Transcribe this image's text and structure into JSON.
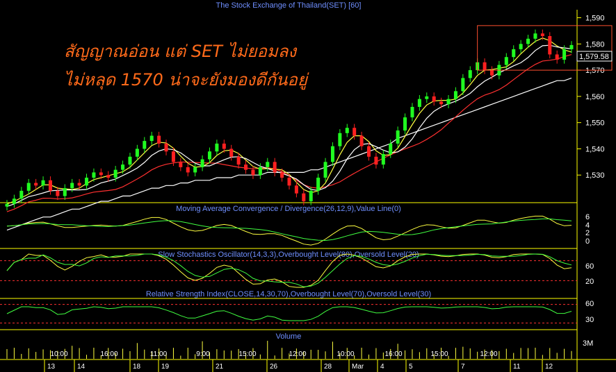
{
  "chart_title": "The Stock Exchange of Thailand(SET) [60]",
  "annotation": {
    "line1": "สัญญาณอ่อน แต่ SET ไม่ยอมลง",
    "line2": "ไม่หลุด 1570 น่าจะยังมองดีกันอยู่"
  },
  "last_price_label": "1,579.58",
  "panels": {
    "macd_title": "Moving Average Convergence / Divergence(26,12,9),Value Line(0)",
    "stoch_title": "Slow Stochastics Oscillator(14,3,3),Overbought Level(80),Oversold Level(20)",
    "rsi_title": "Relative Strength Index(CLOSE,14,30,70),Overbought Level(70),Oversold Level(30)",
    "volume_title": "Volume"
  },
  "price_axis": [
    "1,590",
    "1,580",
    "1,570",
    "1,560",
    "1,550",
    "1,540",
    "1,530"
  ],
  "macd_axis": [
    "6",
    "4",
    "2",
    "0"
  ],
  "stoch_axis": [
    "60",
    "20"
  ],
  "rsi_axis": [
    "60",
    "30"
  ],
  "volume_axis": [
    "3M"
  ],
  "time_labels": [
    "10:00",
    "16:00",
    "11:00",
    "9:00",
    "15:00",
    "12:00",
    "10:00",
    "16:00",
    "15:00",
    "12:00"
  ],
  "date_labels": [
    "13",
    "14",
    "18",
    "19",
    "21",
    "26",
    "28",
    "Mar",
    "4",
    "5",
    "7",
    "11",
    "12"
  ],
  "colors": {
    "up": "#ff2020",
    "down": "#20ff20",
    "ma_fast": "#ffff40",
    "ma_mid": "#ffffff",
    "ma_slow": "#ff3030",
    "grid": "#ffff00"
  },
  "chart_data": {
    "type": "candlestick",
    "title": "The Stock Exchange of Thailand(SET) [60]",
    "ylim": [
      1520,
      1592
    ],
    "y_ticks": [
      1530,
      1540,
      1550,
      1560,
      1570,
      1580,
      1590
    ],
    "last_close": 1579.58,
    "highlight_box": {
      "from": 1570,
      "to": 1587
    },
    "closes": [
      1519,
      1521,
      1524,
      1527,
      1526,
      1528,
      1524,
      1522,
      1525,
      1527,
      1526,
      1529,
      1531,
      1530,
      1529,
      1532,
      1534,
      1537,
      1540,
      1543,
      1545,
      1542,
      1539,
      1535,
      1533,
      1531,
      1533,
      1536,
      1539,
      1542,
      1540,
      1537,
      1534,
      1532,
      1530,
      1533,
      1535,
      1531,
      1529,
      1526,
      1523,
      1520,
      1524,
      1529,
      1535,
      1541,
      1546,
      1548,
      1545,
      1541,
      1537,
      1534,
      1538,
      1542,
      1547,
      1552,
      1556,
      1559,
      1560,
      1558,
      1557,
      1559,
      1562,
      1567,
      1570,
      1573,
      1570,
      1568,
      1572,
      1575,
      1578,
      1580,
      1582,
      1584,
      1583,
      1576,
      1574,
      1578,
      1579.58
    ],
    "ma_slow": [
      1509,
      1510,
      1511,
      1512,
      1513,
      1514,
      1514,
      1515,
      1516,
      1517,
      1517,
      1518,
      1519,
      1520,
      1520,
      1521,
      1522,
      1522,
      1523,
      1524,
      1525,
      1525,
      1526,
      1526,
      1527,
      1527,
      1528,
      1528,
      1528,
      1529,
      1529,
      1529,
      1530,
      1530,
      1530,
      1530,
      1531,
      1531,
      1531,
      1531,
      1531,
      1531,
      1532,
      1532,
      1533,
      1534,
      1535,
      1536,
      1537,
      1538,
      1539,
      1540,
      1541,
      1542,
      1544,
      1545,
      1546,
      1547,
      1548,
      1549,
      1550,
      1551,
      1552,
      1553,
      1554,
      1555,
      1556,
      1557,
      1558,
      1559,
      1560,
      1561,
      1562,
      1563,
      1564,
      1565,
      1566,
      1566,
      1567
    ],
    "volume_label": "Volume",
    "macd_ticks": [
      0,
      2,
      4,
      6
    ],
    "stoch_levels": [
      20,
      80
    ],
    "rsi_levels": [
      30,
      70
    ]
  }
}
